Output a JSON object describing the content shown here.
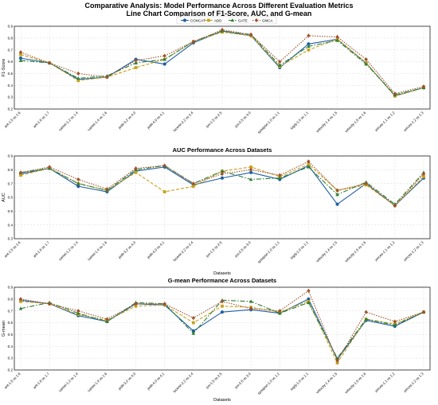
{
  "figure": {
    "title_line1": "Comparative Analysis: Model Performance Across Different Evaluation Metrics",
    "title_line2": "Line Chart Comparison of F1-Score, AUC, and G-mean"
  },
  "legend": {
    "placement": "top-center",
    "items": [
      "CONCAT",
      "ADD",
      "GATE",
      "GMCA"
    ]
  },
  "colors": {
    "CONCAT": "#1f5fa6",
    "ADD": "#c8a21e",
    "GATE": "#2e7d32",
    "GMCA": "#a0522d",
    "grid": "#d9d9d9",
    "axis": "#000000"
  },
  "chart_data": [
    {
      "type": "line",
      "title": "",
      "xlabel": "",
      "ylabel": "F1-Score",
      "ylim": [
        0.2,
        0.9
      ],
      "yticks": [
        "0.2",
        "0.3",
        "0.4",
        "0.5",
        "0.6",
        "0.7",
        "0.8",
        "0.9"
      ],
      "grid": true,
      "categories": [
        "ant-1.5 vs 1.6",
        "ant-1.6 vs 1.7",
        "camel-1.2 vs 1.4",
        "camel-1.4 vs 1.6",
        "jedit-3.2 vs 4.0",
        "jedit-4.0 vs 4.1",
        "lucene-2.2 vs 2.4",
        "poi-1.5 vs 2.5",
        "poi-2.5 vs 3.0",
        "synapse-1.0 vs 1.1",
        "log4j-1.0 vs 1.1",
        "velocity-1.4 vs 1.5",
        "velocity-1.5 vs 1.6",
        "xerces-1.1 vs 1.2",
        "xerces-1.2 vs 1.3"
      ],
      "series": [
        {
          "name": "CONCAT",
          "values": [
            0.63,
            0.59,
            0.45,
            0.47,
            0.62,
            0.58,
            0.76,
            0.86,
            0.82,
            0.55,
            0.75,
            0.79,
            0.59,
            0.31,
            0.38
          ]
        },
        {
          "name": "ADD",
          "values": [
            0.66,
            0.59,
            0.44,
            0.47,
            0.55,
            0.62,
            0.77,
            0.85,
            0.82,
            0.56,
            0.7,
            0.79,
            0.59,
            0.31,
            0.38
          ]
        },
        {
          "name": "GATE",
          "values": [
            0.61,
            0.59,
            0.46,
            0.48,
            0.59,
            0.62,
            0.77,
            0.86,
            0.83,
            0.57,
            0.73,
            0.78,
            0.58,
            0.32,
            0.38
          ]
        },
        {
          "name": "GMCA",
          "values": [
            0.68,
            0.59,
            0.5,
            0.47,
            0.61,
            0.65,
            0.77,
            0.87,
            0.83,
            0.6,
            0.82,
            0.81,
            0.62,
            0.33,
            0.39
          ]
        }
      ]
    },
    {
      "type": "line",
      "title": "AUC Performance Across Datasets",
      "xlabel": "Datasets",
      "ylabel": "AUC",
      "ylim": [
        0.3,
        0.9
      ],
      "yticks": [
        "0.3",
        "0.4",
        "0.5",
        "0.6",
        "0.7",
        "0.8",
        "0.9"
      ],
      "grid": true,
      "categories": [
        "ant-1.5 vs 1.6",
        "ant-1.6 vs 1.7",
        "camel-1.2 vs 1.4",
        "camel-1.4 vs 1.6",
        "jedit-3.2 vs 4.0",
        "jedit-4.0 vs 4.1",
        "lucene-2.2 vs 2.4",
        "poi-1.5 vs 2.5",
        "poi-2.5 vs 3.0",
        "synapse-1.0 vs 1.1",
        "log4j-1.0 vs 1.1",
        "velocity-1.4 vs 1.5",
        "velocity-1.5 vs 1.6",
        "xerces-1.1 vs 1.2",
        "xerces-1.2 vs 1.3"
      ],
      "series": [
        {
          "name": "CONCAT",
          "values": [
            0.77,
            0.81,
            0.68,
            0.64,
            0.79,
            0.82,
            0.69,
            0.74,
            0.78,
            0.73,
            0.83,
            0.55,
            0.7,
            0.54,
            0.74
          ]
        },
        {
          "name": "ADD",
          "values": [
            0.76,
            0.81,
            0.7,
            0.65,
            0.78,
            0.64,
            0.68,
            0.79,
            0.82,
            0.75,
            0.84,
            0.65,
            0.69,
            0.54,
            0.75
          ]
        },
        {
          "name": "GATE",
          "values": [
            0.78,
            0.81,
            0.7,
            0.65,
            0.8,
            0.83,
            0.7,
            0.79,
            0.73,
            0.74,
            0.82,
            0.62,
            0.71,
            0.55,
            0.78
          ]
        },
        {
          "name": "GMCA",
          "values": [
            0.78,
            0.82,
            0.73,
            0.66,
            0.81,
            0.83,
            0.7,
            0.77,
            0.8,
            0.76,
            0.86,
            0.65,
            0.7,
            0.54,
            0.77
          ]
        }
      ]
    },
    {
      "type": "line",
      "title": "G-mean Performance Across Datasets",
      "xlabel": "Datasets",
      "ylabel": "G-mean",
      "ylim": [
        0.2,
        0.9
      ],
      "yticks": [
        "0.2",
        "0.3",
        "0.4",
        "0.5",
        "0.6",
        "0.7",
        "0.8",
        "0.9"
      ],
      "grid": true,
      "categories": [
        "ant-1.5 vs 1.6",
        "ant-1.6 vs 1.7",
        "camel-1.2 vs 1.4",
        "camel-1.4 vs 1.6",
        "jedit-3.2 vs 4.0",
        "jedit-4.0 vs 4.1",
        "lucene-2.2 vs 2.4",
        "poi-1.5 vs 2.5",
        "poi-2.5 vs 3.0",
        "synapse-1.0 vs 1.1",
        "log4j-1.0 vs 1.1",
        "velocity-1.4 vs 1.5",
        "velocity-1.5 vs 1.6",
        "xerces-1.1 vs 1.2",
        "xerces-1.2 vs 1.3"
      ],
      "series": [
        {
          "name": "CONCAT",
          "values": [
            0.79,
            0.76,
            0.66,
            0.61,
            0.76,
            0.75,
            0.53,
            0.69,
            0.71,
            0.68,
            0.8,
            0.29,
            0.62,
            0.57,
            0.69
          ]
        },
        {
          "name": "ADD",
          "values": [
            0.78,
            0.76,
            0.67,
            0.62,
            0.74,
            0.75,
            0.6,
            0.74,
            0.73,
            0.69,
            0.78,
            0.26,
            0.63,
            0.59,
            0.69
          ]
        },
        {
          "name": "GATE",
          "values": [
            0.72,
            0.77,
            0.68,
            0.61,
            0.77,
            0.76,
            0.51,
            0.79,
            0.78,
            0.68,
            0.77,
            0.3,
            0.63,
            0.58,
            0.69
          ]
        },
        {
          "name": "GMCA",
          "values": [
            0.8,
            0.76,
            0.7,
            0.63,
            0.76,
            0.76,
            0.64,
            0.78,
            0.72,
            0.7,
            0.87,
            0.28,
            0.69,
            0.61,
            0.69
          ]
        }
      ]
    }
  ]
}
